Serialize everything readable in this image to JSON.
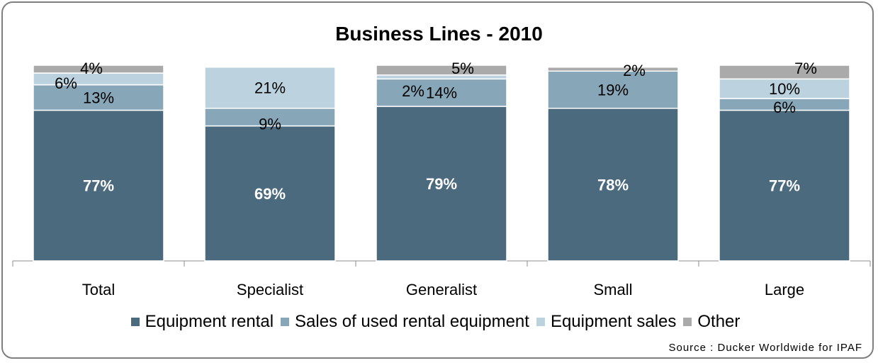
{
  "chart_data": {
    "type": "bar",
    "stacked": true,
    "title": "Business Lines - 2010",
    "categories": [
      "Total",
      "Specialist",
      "Generalist",
      "Small",
      "Large"
    ],
    "series": [
      {
        "name": "Equipment rental",
        "color": "#4b6a7e",
        "values": [
          77,
          69,
          79,
          78,
          77
        ]
      },
      {
        "name": "Sales of used rental equipment",
        "color": "#87a6b8",
        "values": [
          13,
          9,
          14,
          19,
          6
        ]
      },
      {
        "name": "Equipment sales",
        "color": "#bcd3df",
        "values": [
          6,
          21,
          2,
          0,
          10
        ]
      },
      {
        "name": "Other",
        "color": "#aaaaaa",
        "values": [
          4,
          0,
          5,
          2,
          7
        ]
      }
    ],
    "labels": [
      [
        "77%",
        "69%",
        "79%",
        "78%",
        "77%"
      ],
      [
        "13%",
        "9%",
        "14%",
        "19%",
        "6%"
      ],
      [
        "6%",
        "21%",
        "2%",
        "",
        "10%"
      ],
      [
        "4%",
        "",
        "5%",
        "2%",
        "7%"
      ]
    ],
    "ylim": [
      0,
      100
    ],
    "legend_position": "bottom",
    "grid": false
  },
  "source": "Source : Ducker Worldwide for IPAF"
}
